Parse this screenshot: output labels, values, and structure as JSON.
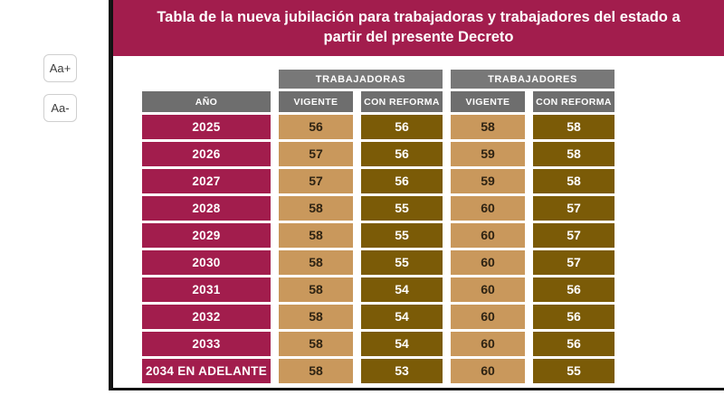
{
  "controls": {
    "increase_label": "Aa+",
    "decrease_label": "Aa-"
  },
  "header": {
    "title": "Tabla de la nueva jubilación para trabajadoras y trabajadores del estado a partir del presente Decreto"
  },
  "chart_data": {
    "type": "table",
    "title": "Tabla de la nueva jubilación para trabajadoras y trabajadores del estado a partir del presente Decreto",
    "group_headers": [
      "TRABAJADORAS",
      "TRABAJADORES"
    ],
    "columns": [
      "AÑO",
      "VIGENTE",
      "CON REFORMA",
      "VIGENTE",
      "CON REFORMA"
    ],
    "rows": [
      {
        "year": "2025",
        "values": [
          56,
          56,
          58,
          58
        ]
      },
      {
        "year": "2026",
        "values": [
          57,
          56,
          59,
          58
        ]
      },
      {
        "year": "2027",
        "values": [
          57,
          56,
          59,
          58
        ]
      },
      {
        "year": "2028",
        "values": [
          58,
          55,
          60,
          57
        ]
      },
      {
        "year": "2029",
        "values": [
          58,
          55,
          60,
          57
        ]
      },
      {
        "year": "2030",
        "values": [
          58,
          55,
          60,
          57
        ]
      },
      {
        "year": "2031",
        "values": [
          58,
          54,
          60,
          56
        ]
      },
      {
        "year": "2032",
        "values": [
          58,
          54,
          60,
          56
        ]
      },
      {
        "year": "2033",
        "values": [
          58,
          54,
          60,
          56
        ]
      },
      {
        "year": "2034 EN ADELANTE",
        "values": [
          58,
          53,
          60,
          55
        ]
      }
    ]
  },
  "colors": {
    "maroon": "#A21D4D",
    "tan": "#C9985C",
    "brown": "#7B5B07",
    "gray": "#6E6E6E"
  }
}
